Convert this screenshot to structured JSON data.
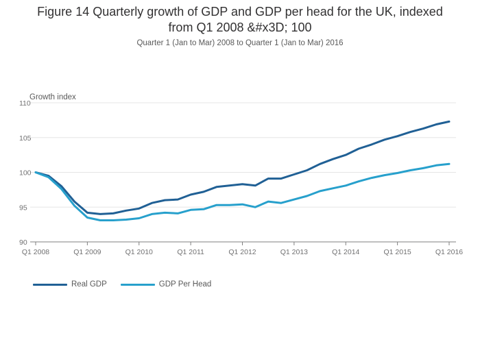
{
  "chart_data": {
    "type": "line",
    "title": "Figure 14 Quarterly growth of GDP and GDP per head for the UK, indexed from Q1 2008 &#x3D; 100",
    "subtitle": "Quarter 1 (Jan to Mar) 2008 to Quarter 1 (Jan to Mar) 2016",
    "ylabel": "Growth index",
    "xlabel": "",
    "ylim": [
      90,
      110
    ],
    "yticks": [
      90,
      95,
      100,
      105,
      110
    ],
    "x": [
      "Q1 2008",
      "Q2 2008",
      "Q3 2008",
      "Q4 2008",
      "Q1 2009",
      "Q2 2009",
      "Q3 2009",
      "Q4 2009",
      "Q1 2010",
      "Q2 2010",
      "Q3 2010",
      "Q4 2010",
      "Q1 2011",
      "Q2 2011",
      "Q3 2011",
      "Q4 2011",
      "Q1 2012",
      "Q2 2012",
      "Q3 2012",
      "Q4 2012",
      "Q1 2013",
      "Q2 2013",
      "Q3 2013",
      "Q4 2013",
      "Q1 2014",
      "Q2 2014",
      "Q3 2014",
      "Q4 2014",
      "Q1 2015",
      "Q2 2015",
      "Q3 2015",
      "Q4 2015",
      "Q1 2016"
    ],
    "xtick_labels": [
      "Q1 2008",
      "Q1 2009",
      "Q1 2010",
      "Q1 2011",
      "Q1 2012",
      "Q1 2013",
      "Q1 2014",
      "Q1 2015",
      "Q1 2016"
    ],
    "series": [
      {
        "name": "Real GDP",
        "color": "#206095",
        "values": [
          100.0,
          99.5,
          98.0,
          95.8,
          94.2,
          94.0,
          94.1,
          94.5,
          94.8,
          95.6,
          96.0,
          96.1,
          96.8,
          97.2,
          97.9,
          98.1,
          98.3,
          98.1,
          99.1,
          99.1,
          99.7,
          100.3,
          101.2,
          101.9,
          102.5,
          103.4,
          104.0,
          104.7,
          105.2,
          105.8,
          106.3,
          106.9,
          107.3
        ]
      },
      {
        "name": "GDP Per Head",
        "color": "#27a0cc",
        "values": [
          100.0,
          99.3,
          97.6,
          95.2,
          93.5,
          93.1,
          93.1,
          93.2,
          93.4,
          94.0,
          94.2,
          94.1,
          94.6,
          94.7,
          95.3,
          95.3,
          95.4,
          95.0,
          95.8,
          95.6,
          96.1,
          96.6,
          97.3,
          97.7,
          98.1,
          98.7,
          99.2,
          99.6,
          99.9,
          100.3,
          100.6,
          101.0,
          101.2
        ]
      }
    ],
    "grid": true,
    "legend_position": "bottom-left"
  }
}
